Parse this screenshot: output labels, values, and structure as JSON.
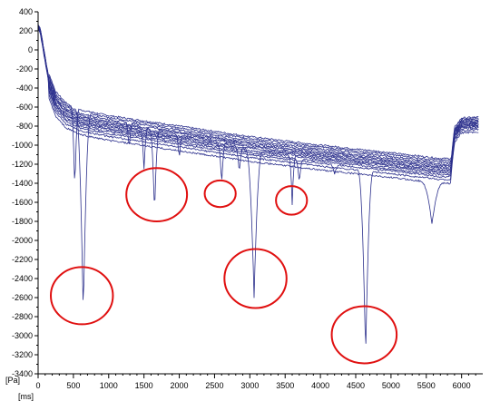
{
  "chart_data": {
    "type": "line",
    "title": "",
    "xlabel": "[ms]",
    "ylabel": "[Pa]",
    "xlim": [
      0,
      6300
    ],
    "ylim": [
      -3400,
      400
    ],
    "x_ticks": [
      0,
      500,
      1000,
      1500,
      2000,
      2500,
      3000,
      3500,
      4000,
      4500,
      5000,
      5500,
      6000
    ],
    "y_ticks": [
      400,
      200,
      0,
      -200,
      -400,
      -600,
      -800,
      -1000,
      -1200,
      -1400,
      -1600,
      -1800,
      -2000,
      -2200,
      -2400,
      -2600,
      -2800,
      -3000,
      -3200,
      -3400
    ],
    "grid": false,
    "line_color": "#2b2f8c",
    "annotation_color": "#e01010",
    "baseline": {
      "x": [
        0,
        30,
        80,
        150,
        250,
        400,
        600,
        1000,
        2000,
        3000,
        4000,
        5000,
        5700,
        5850,
        5900,
        6000,
        6300
      ],
      "y": [
        250,
        220,
        0,
        -300,
        -500,
        -620,
        -690,
        -750,
        -860,
        -970,
        -1060,
        -1140,
        -1200,
        -1200,
        -850,
        -750,
        -740
      ]
    },
    "band_offsets": [
      60,
      40,
      20,
      0,
      -15,
      -30,
      -45,
      -60,
      -75,
      -90,
      -110,
      -130,
      -160,
      -200
    ],
    "dips": [
      {
        "x": 520,
        "y": -1480,
        "width": 60
      },
      {
        "x": 640,
        "y": -2800,
        "width": 110
      },
      {
        "x": 1290,
        "y": -1050,
        "width": 50
      },
      {
        "x": 1500,
        "y": -1250,
        "width": 60
      },
      {
        "x": 1650,
        "y": -1730,
        "width": 70
      },
      {
        "x": 2000,
        "y": -1150,
        "width": 50
      },
      {
        "x": 2600,
        "y": -1420,
        "width": 60
      },
      {
        "x": 2850,
        "y": -1300,
        "width": 60
      },
      {
        "x": 3060,
        "y": -2600,
        "width": 120
      },
      {
        "x": 3600,
        "y": -1620,
        "width": 50
      },
      {
        "x": 3700,
        "y": -1400,
        "width": 60
      },
      {
        "x": 4200,
        "y": -1300,
        "width": 70
      },
      {
        "x": 4640,
        "y": -3230,
        "width": 110
      },
      {
        "x": 5580,
        "y": -1830,
        "width": 160
      }
    ],
    "highlighted_events": [
      {
        "x": 620,
        "y": -2580,
        "rx": 440,
        "ry": 300
      },
      {
        "x": 1680,
        "y": -1520,
        "rx": 430,
        "ry": 280
      },
      {
        "x": 2580,
        "y": -1510,
        "rx": 220,
        "ry": 140
      },
      {
        "x": 3080,
        "y": -2400,
        "rx": 440,
        "ry": 310
      },
      {
        "x": 3590,
        "y": -1580,
        "rx": 220,
        "ry": 150
      },
      {
        "x": 4620,
        "y": -2990,
        "rx": 460,
        "ry": 300
      }
    ]
  }
}
